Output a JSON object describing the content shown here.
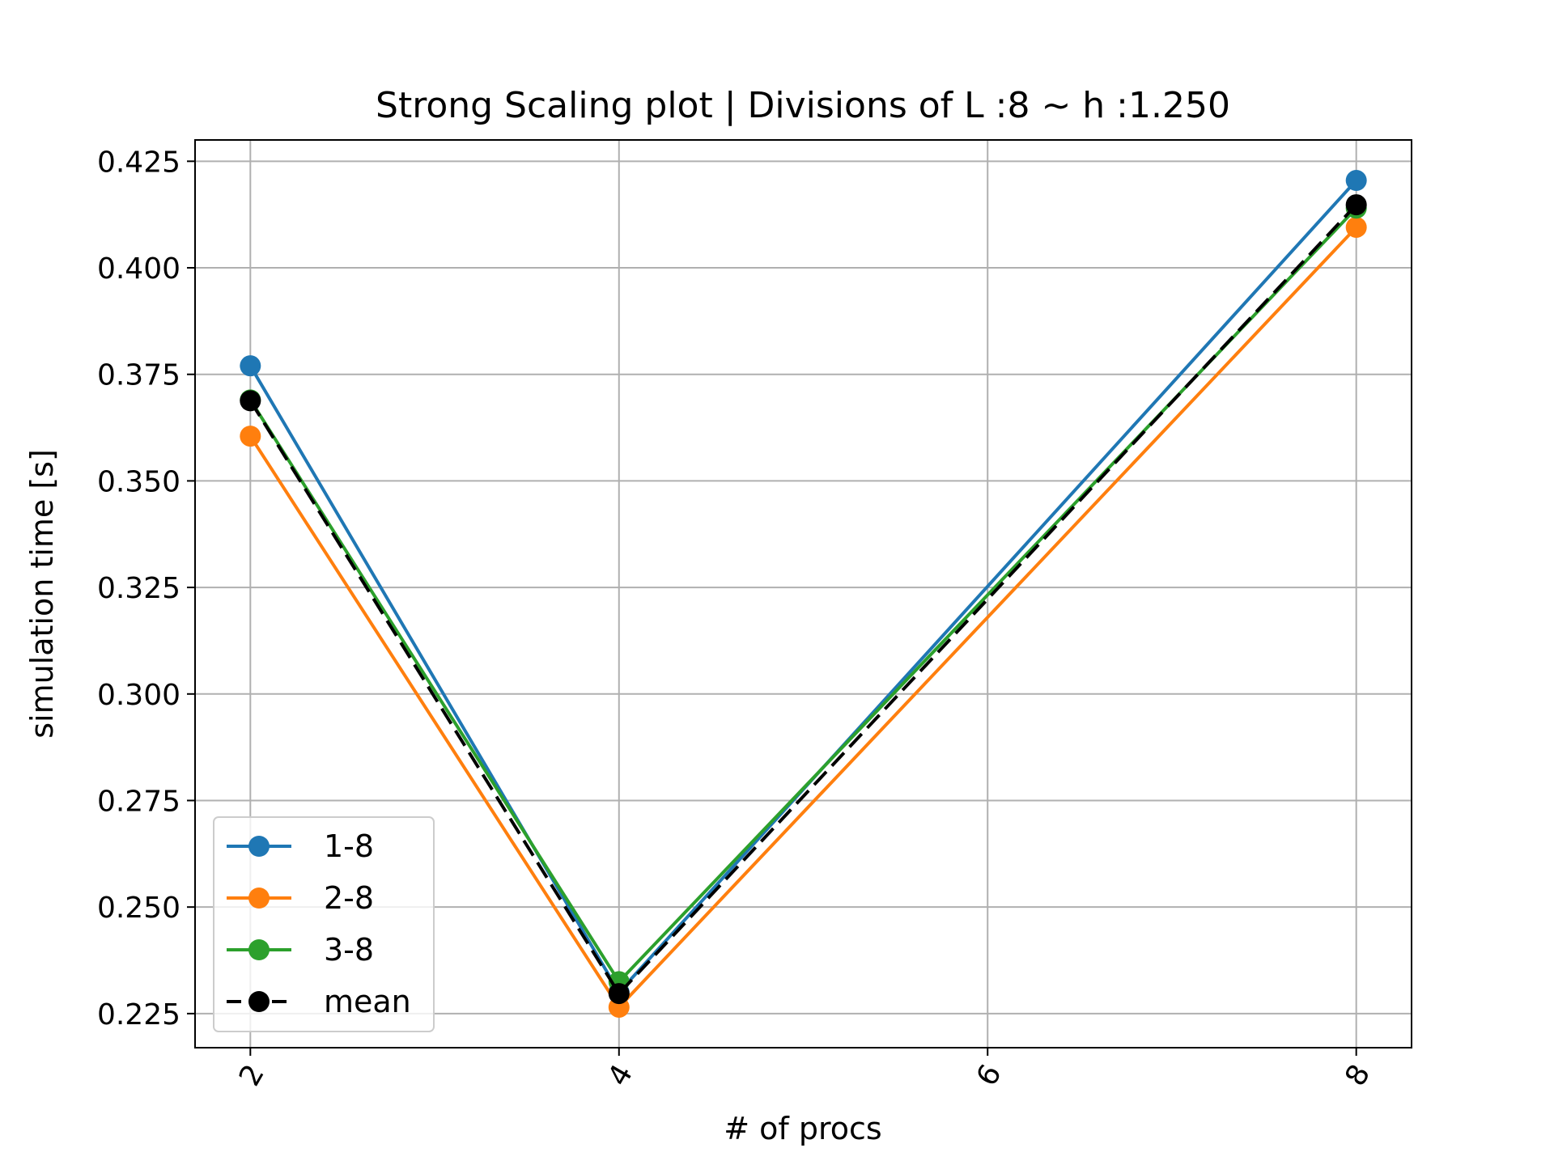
{
  "chart_data": {
    "type": "line",
    "title": "Strong Scaling plot | Divisions of L :8 ~ h :1.250",
    "xlabel": "# of procs",
    "ylabel": "simulation time [s]",
    "xlim": [
      1.7,
      8.3
    ],
    "ylim": [
      0.217,
      0.43
    ],
    "x_ticks": [
      2,
      4,
      6,
      8
    ],
    "x_tick_labels": [
      "2",
      "4",
      "6",
      "8"
    ],
    "y_ticks": [
      0.225,
      0.25,
      0.275,
      0.3,
      0.325,
      0.35,
      0.375,
      0.4,
      0.425
    ],
    "y_tick_labels": [
      "0.225",
      "0.250",
      "0.275",
      "0.300",
      "0.325",
      "0.350",
      "0.375",
      "0.400",
      "0.425"
    ],
    "grid": true,
    "legend_position": "lower-left",
    "x": [
      2,
      4,
      8
    ],
    "series": [
      {
        "name": "1-8",
        "values": [
          0.377,
          0.23,
          0.4205
        ],
        "color": "#1f77b4",
        "dashed": false
      },
      {
        "name": "2-8",
        "values": [
          0.3605,
          0.2265,
          0.4095
        ],
        "color": "#ff7f0e",
        "dashed": false
      },
      {
        "name": "3-8",
        "values": [
          0.369,
          0.2325,
          0.414
        ],
        "color": "#2ca02c",
        "dashed": false
      },
      {
        "name": "mean",
        "values": [
          0.3688,
          0.2297,
          0.4148
        ],
        "color": "#000000",
        "dashed": true
      }
    ]
  }
}
